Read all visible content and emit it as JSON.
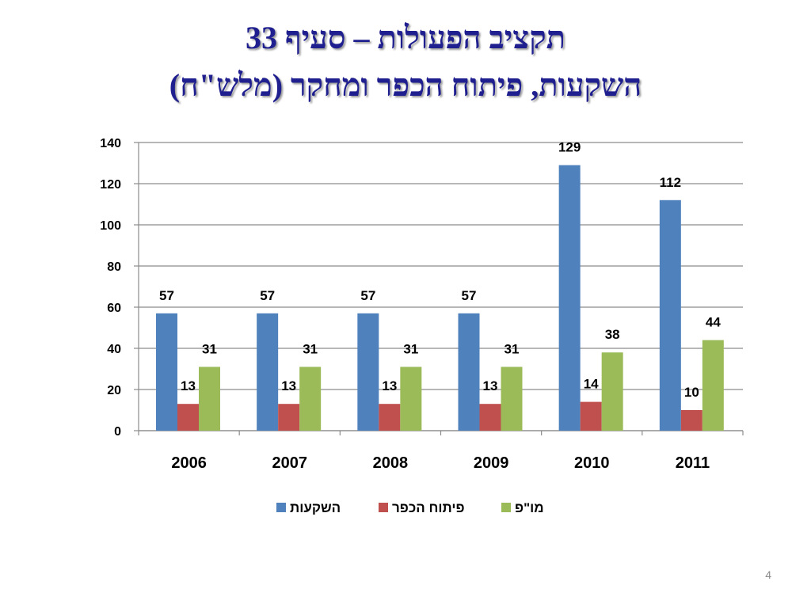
{
  "slide": {
    "title_line_1": "תקציב הפעולות – סעיף 33",
    "title_line_2": "השקעות, פיתוח הכפר ומחקר (מלש\"ח)",
    "page_number": "4"
  },
  "colors": {
    "title": "#1f1f8f",
    "series": [
      "#4f81bd",
      "#c0504d",
      "#9bbb59"
    ],
    "grid": "#8c8c8c",
    "axis": "#8c8c8c"
  },
  "chart_data": {
    "type": "bar",
    "categories": [
      "2006",
      "2007",
      "2008",
      "2009",
      "2010",
      "2011"
    ],
    "series": [
      {
        "name": "השקעות",
        "values": [
          57,
          57,
          57,
          57,
          129,
          112
        ]
      },
      {
        "name": "פיתוח הכפר",
        "values": [
          13,
          13,
          13,
          13,
          14,
          10
        ]
      },
      {
        "name": "מו\"פ",
        "values": [
          31,
          31,
          31,
          31,
          38,
          44
        ]
      }
    ],
    "ylim": [
      0,
      140
    ],
    "yticks": [
      0,
      20,
      40,
      60,
      80,
      100,
      120,
      140
    ],
    "grid": true,
    "legend_position": "bottom",
    "data_labels": true
  }
}
